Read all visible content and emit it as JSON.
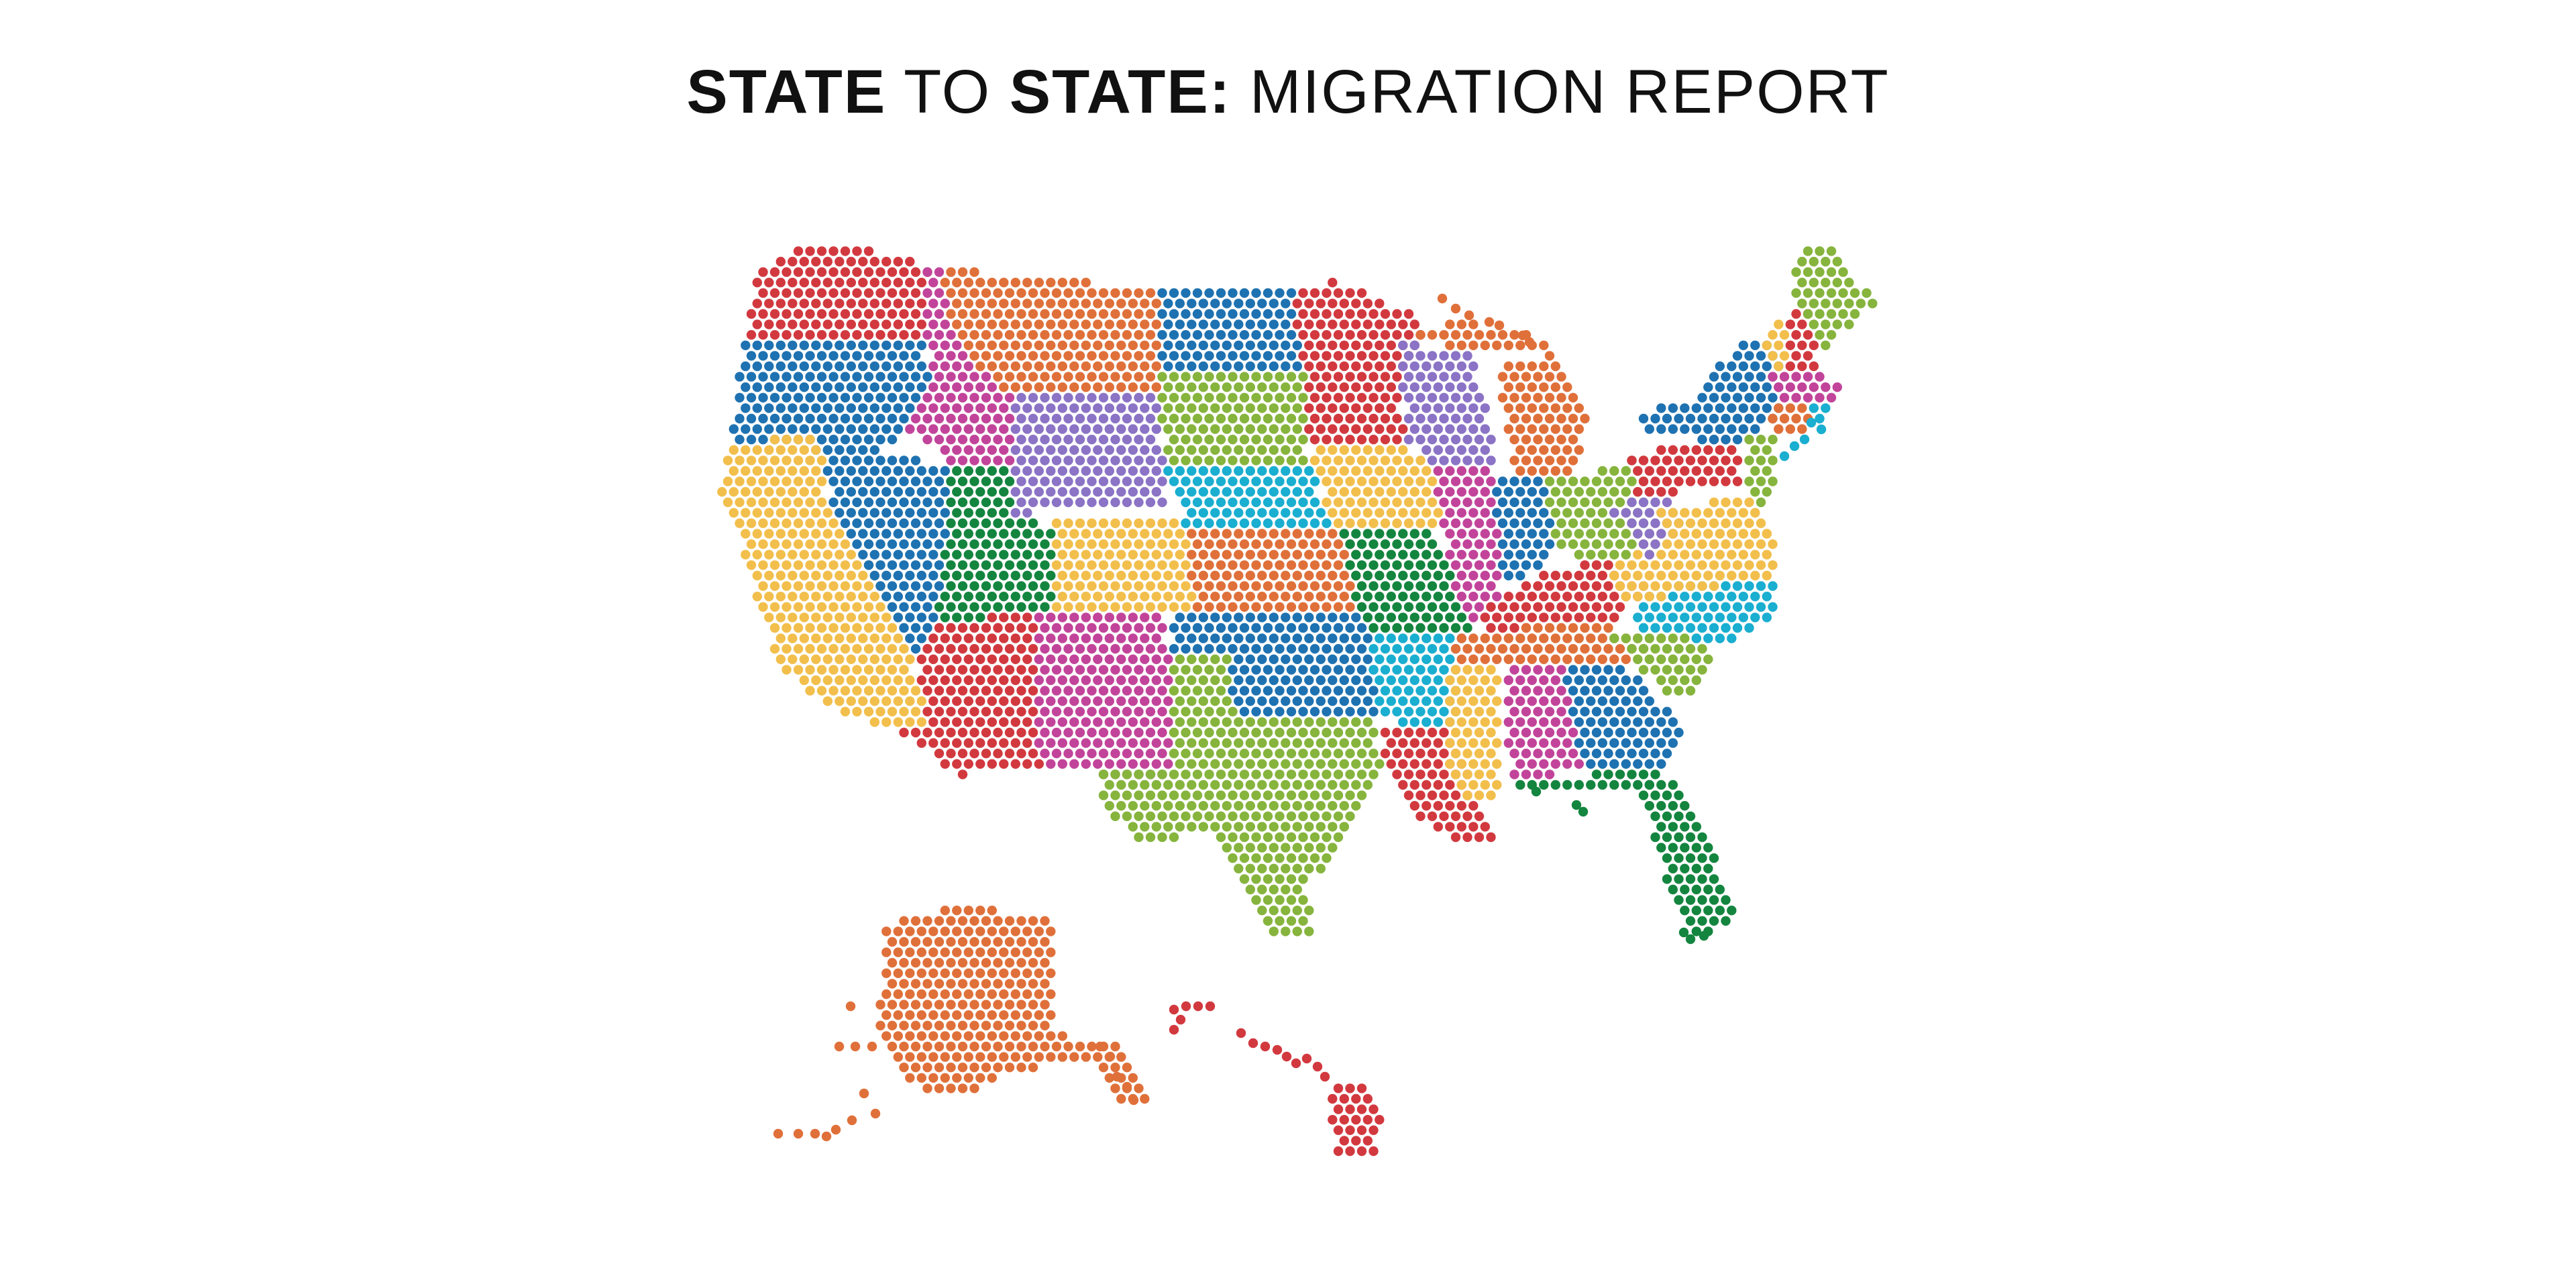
{
  "title": {
    "part1": "STATE",
    "part2": " TO ",
    "part3": "STATE:",
    "part4": " MIGRATION REPORT"
  },
  "palette": {
    "red": "#d2393f",
    "orange": "#e0703a",
    "blue": "#1e72b1",
    "magenta": "#c2449a",
    "purple": "#8b73c6",
    "green": "#86b43d",
    "cyan": "#1aaed0",
    "yellow": "#f2bf4c",
    "darkgreen": "#14853f"
  }
}
